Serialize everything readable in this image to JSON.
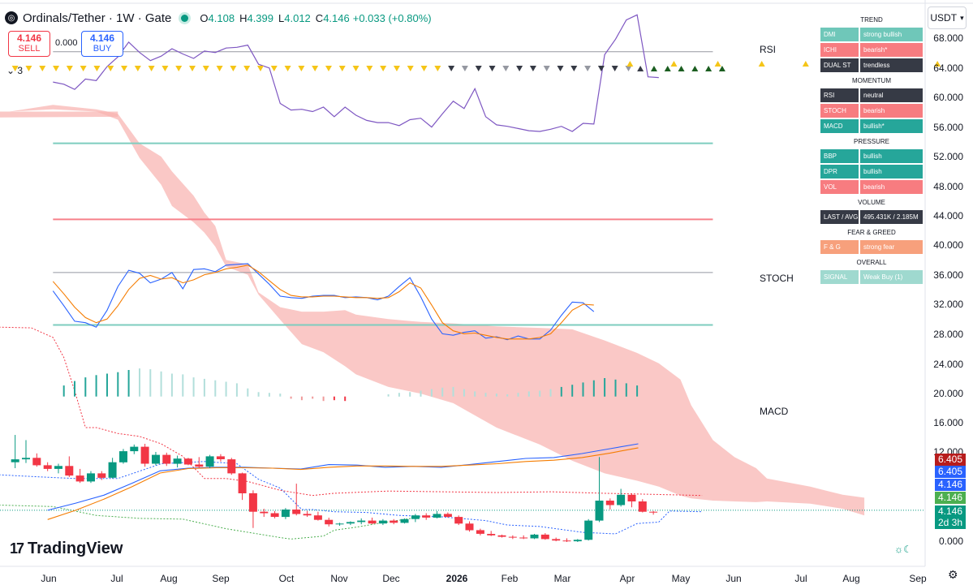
{
  "header": {
    "symbol_title": "Ordinals/Tether · 1W · Gate",
    "ohlc": [
      {
        "key": "O",
        "value": "4.108"
      },
      {
        "key": "H",
        "value": "4.399"
      },
      {
        "key": "L",
        "value": "4.012"
      },
      {
        "key": "C",
        "value": "4.146"
      }
    ],
    "change": "+0.033 (+0.80%)",
    "sell_price": "4.146",
    "sell_label": "SELL",
    "buy_price": "4.146",
    "buy_label": "BUY",
    "spread": "0.000",
    "collapse_count": "3",
    "currency": "USDT",
    "brand": "TradingView",
    "brand_mark": "17"
  },
  "colors": {
    "up": "#089981",
    "down": "#f23645",
    "cloud": "#f8b3b0",
    "rsi_line": "#7e57c2",
    "blue": "#2962ff",
    "orange": "#f57c00",
    "teal_level": "#7ecdbf",
    "red_level": "#f7808a"
  },
  "indicator_labels": {
    "rsi": "RSI",
    "stoch": "STOCH",
    "macd": "MACD"
  },
  "price_tags": [
    {
      "text": "6.405",
      "bg": "#b71c1c"
    },
    {
      "text": "6.405",
      "bg": "#2962ff"
    },
    {
      "text": "4.146",
      "bg": "#2962ff"
    },
    {
      "text": "4.146",
      "bg": "#4caf50"
    },
    {
      "text": "4.146",
      "bg": "#089981"
    },
    {
      "text": "2d 3h",
      "bg": "#089981"
    }
  ],
  "signal_panel": [
    {
      "type": "head",
      "text": "TREND"
    },
    {
      "type": "row",
      "key": "DMI",
      "value": "strong bullish",
      "kbg": "#6fc7b9",
      "vbg": "#6fc7b9"
    },
    {
      "type": "row",
      "key": "ICHI",
      "value": "bearish*",
      "kbg": "#f77c80",
      "vbg": "#f77c80"
    },
    {
      "type": "row",
      "key": "DUAL ST",
      "value": "trendless",
      "kbg": "#363a45",
      "vbg": "#363a45"
    },
    {
      "type": "head",
      "text": "MOMENTUM"
    },
    {
      "type": "row",
      "key": "RSI",
      "value": "neutral",
      "kbg": "#363a45",
      "vbg": "#363a45"
    },
    {
      "type": "row",
      "key": "STOCH",
      "value": "bearish",
      "kbg": "#f77c80",
      "vbg": "#f77c80"
    },
    {
      "type": "row",
      "key": "MACD",
      "value": "bullish*",
      "kbg": "#26a69a",
      "vbg": "#26a69a"
    },
    {
      "type": "head",
      "text": "PRESSURE"
    },
    {
      "type": "row",
      "key": "BBP",
      "value": "bullish",
      "kbg": "#26a69a",
      "vbg": "#26a69a"
    },
    {
      "type": "row",
      "key": "DPR",
      "value": "bullish",
      "kbg": "#26a69a",
      "vbg": "#26a69a"
    },
    {
      "type": "row",
      "key": "VOL",
      "value": "bearish",
      "kbg": "#f77c80",
      "vbg": "#f77c80"
    },
    {
      "type": "head",
      "text": "VOLUME"
    },
    {
      "type": "row",
      "key": "LAST / AVG",
      "value": "495.431K / 2.185M",
      "kbg": "#363a45",
      "vbg": "#363a45"
    },
    {
      "type": "head",
      "text": "FEAR & GREED"
    },
    {
      "type": "row",
      "key": "F & G",
      "value": "strong fear",
      "kbg": "#f7a07c",
      "vbg": "#f7a07c"
    },
    {
      "type": "head",
      "text": "OVERALL"
    },
    {
      "type": "row",
      "key": "SIGNAL",
      "value": "Weak Buy  (1)",
      "kbg": "#9fd9cf",
      "vbg": "#9fd9cf"
    }
  ],
  "chart_data": {
    "type": "candlestick",
    "yaxis": {
      "ticks": [
        "68.000",
        "64.000",
        "60.000",
        "56.000",
        "52.000",
        "48.000",
        "44.000",
        "40.000",
        "36.000",
        "32.000",
        "28.000",
        "24.000",
        "20.000",
        "16.000",
        "12.000",
        "0.000"
      ],
      "range": [
        0,
        70
      ]
    },
    "xaxis": {
      "ticks": [
        "Jun",
        "Jul",
        "Aug",
        "Sep",
        "Oct",
        "Nov",
        "Dec",
        "2026",
        "Feb",
        "Mar",
        "Apr",
        "May",
        "Jun",
        "Jul",
        "Aug",
        "Sep"
      ],
      "bold_tick": "2026"
    },
    "candles": [
      [
        9.8,
        13.5,
        9.0,
        10.2
      ],
      [
        10.2,
        12.8,
        9.7,
        10.4
      ],
      [
        10.4,
        11.0,
        9.2,
        9.4
      ],
      [
        9.4,
        9.8,
        8.6,
        8.9
      ],
      [
        8.9,
        9.6,
        8.3,
        9.3
      ],
      [
        9.3,
        10.6,
        7.8,
        8.0
      ],
      [
        8.0,
        8.9,
        7.0,
        7.2
      ],
      [
        7.2,
        8.6,
        7.0,
        8.3
      ],
      [
        8.3,
        8.6,
        7.4,
        7.7
      ],
      [
        7.7,
        10.4,
        7.6,
        9.8
      ],
      [
        9.8,
        11.6,
        9.6,
        11.3
      ],
      [
        11.3,
        12.2,
        10.9,
        11.9
      ],
      [
        11.9,
        12.3,
        9.2,
        9.6
      ],
      [
        9.6,
        11.2,
        9.4,
        10.8
      ],
      [
        10.8,
        11.1,
        9.3,
        9.6
      ],
      [
        9.6,
        10.7,
        9.1,
        10.3
      ],
      [
        10.3,
        10.4,
        9.4,
        9.5
      ],
      [
        9.5,
        10.5,
        9.0,
        9.2
      ],
      [
        9.2,
        10.8,
        9.0,
        10.6
      ],
      [
        10.6,
        10.9,
        9.9,
        10.2
      ],
      [
        10.2,
        10.4,
        8.1,
        8.3
      ],
      [
        8.3,
        8.4,
        4.7,
        5.6
      ],
      [
        5.6,
        6.0,
        0.9,
        3.1
      ],
      [
        3.1,
        3.5,
        2.4,
        2.9
      ],
      [
        2.9,
        3.2,
        2.2,
        2.4
      ],
      [
        2.4,
        3.6,
        2.1,
        3.4
      ],
      [
        3.4,
        6.9,
        2.6,
        2.8
      ],
      [
        2.8,
        3.2,
        2.4,
        2.6
      ],
      [
        2.6,
        3.1,
        1.9,
        2.0
      ],
      [
        2.0,
        2.3,
        1.1,
        1.4
      ],
      [
        1.4,
        1.6,
        1.2,
        1.5
      ],
      [
        1.5,
        1.8,
        1.3,
        1.7
      ],
      [
        1.7,
        2.2,
        1.4,
        1.9
      ],
      [
        1.9,
        2.3,
        1.4,
        1.5
      ],
      [
        1.5,
        2.1,
        1.3,
        1.9
      ],
      [
        1.9,
        2.1,
        1.4,
        1.6
      ],
      [
        1.6,
        2.2,
        1.5,
        2.1
      ],
      [
        2.1,
        2.8,
        1.7,
        2.6
      ],
      [
        2.6,
        2.9,
        2.0,
        2.3
      ],
      [
        2.3,
        3.2,
        2.2,
        2.8
      ],
      [
        2.8,
        3.0,
        2.3,
        2.4
      ],
      [
        2.4,
        2.6,
        1.3,
        1.5
      ],
      [
        1.5,
        1.8,
        0.4,
        0.6
      ],
      [
        0.6,
        0.8,
        -0.1,
        0.1
      ],
      [
        0.1,
        0.5,
        -0.2,
        -0.1
      ],
      [
        -0.1,
        0.0,
        -0.4,
        -0.3
      ],
      [
        -0.3,
        -0.1,
        -0.6,
        -0.4
      ],
      [
        -0.4,
        -0.1,
        -0.6,
        -0.5
      ],
      [
        -0.5,
        0.1,
        -0.6,
        0.0
      ],
      [
        0.0,
        0.2,
        -0.7,
        -0.6
      ],
      [
        -0.6,
        -0.4,
        -0.9,
        -0.8
      ],
      [
        -0.8,
        -0.5,
        -1.0,
        -0.9
      ],
      [
        -0.9,
        -0.6,
        -1.0,
        -0.7
      ],
      [
        -0.7,
        2.1,
        -0.8,
        1.9
      ],
      [
        1.9,
        10.5,
        1.7,
        4.6
      ],
      [
        4.6,
        4.9,
        3.4,
        4.0
      ],
      [
        4.0,
        6.2,
        3.8,
        5.4
      ],
      [
        5.4,
        5.6,
        3.7,
        4.5
      ],
      [
        4.5,
        4.8,
        3.0,
        3.1
      ],
      [
        3.1,
        3.2,
        2.7,
        3.0
      ]
    ],
    "cloud_upper": [
      [
        0,
        58.3
      ],
      [
        4,
        59.2
      ],
      [
        8,
        58.6
      ],
      [
        10,
        58.0
      ],
      [
        12,
        54.0
      ],
      [
        14,
        52.2
      ],
      [
        15,
        50.2
      ],
      [
        17,
        46.9
      ],
      [
        18,
        44.6
      ],
      [
        19,
        42.8
      ],
      [
        20,
        38.2
      ],
      [
        22,
        37.6
      ],
      [
        23,
        33.8
      ],
      [
        25,
        31.8
      ],
      [
        27,
        31.2
      ],
      [
        29,
        31.2
      ],
      [
        31,
        31.4
      ],
      [
        32,
        30.8
      ],
      [
        35,
        30.2
      ],
      [
        38,
        29.8
      ],
      [
        41,
        29.6
      ],
      [
        45,
        29.2
      ],
      [
        49,
        29.0
      ],
      [
        52,
        28.8
      ],
      [
        55,
        27.3
      ],
      [
        58,
        25.6
      ],
      [
        60,
        24.2
      ],
      [
        62,
        22.0
      ],
      [
        63,
        18.5
      ],
      [
        65,
        13.8
      ],
      [
        67,
        11.5
      ],
      [
        69,
        10.0
      ],
      [
        70,
        8.6
      ],
      [
        74,
        7.5
      ],
      [
        77,
        6.4
      ],
      [
        79,
        6.0
      ]
    ],
    "cloud_lower": [
      [
        0,
        58.3
      ],
      [
        4,
        58.6
      ],
      [
        8,
        58.3
      ],
      [
        10,
        57.2
      ],
      [
        12,
        52.0
      ],
      [
        14,
        48.4
      ],
      [
        15,
        45.5
      ],
      [
        17,
        43.3
      ],
      [
        18,
        41.9
      ],
      [
        19,
        40.0
      ],
      [
        20,
        37.3
      ],
      [
        22,
        36.2
      ],
      [
        23,
        33.5
      ],
      [
        25,
        30.1
      ],
      [
        27,
        26.8
      ],
      [
        29,
        25.7
      ],
      [
        31,
        23.8
      ],
      [
        32,
        22.7
      ],
      [
        35,
        21.0
      ],
      [
        38,
        20.1
      ],
      [
        41,
        18.8
      ],
      [
        45,
        15.5
      ],
      [
        49,
        13.2
      ],
      [
        52,
        11.0
      ],
      [
        55,
        9.3
      ],
      [
        58,
        8.3
      ],
      [
        60,
        7.5
      ],
      [
        62,
        6.3
      ],
      [
        63,
        5.9
      ],
      [
        65,
        5.6
      ],
      [
        67,
        5.5
      ],
      [
        69,
        5.4
      ],
      [
        70,
        5.5
      ],
      [
        74,
        5.2
      ],
      [
        77,
        4.5
      ],
      [
        79,
        3.6
      ]
    ],
    "series": [
      {
        "key": "rsi",
        "values": [
          62.3,
          62.0,
          61.3,
          62.7,
          62.5,
          64.4,
          65.7,
          67.7,
          66.3,
          65.2,
          65.8,
          66.8,
          66.1,
          65.5,
          66.5,
          66.3,
          66.9,
          67.0,
          67.3,
          64.7,
          64.2,
          59.4,
          58.5,
          58.6,
          58.3,
          58.9,
          57.6,
          58.9,
          57.8,
          57.1,
          56.8,
          56.8,
          56.4,
          57.2,
          57.4,
          56.2,
          58.0,
          59.7,
          58.7,
          61.4,
          57.6,
          56.5,
          56.3,
          56.0,
          55.7,
          55.6,
          55.9,
          56.3,
          55.6,
          56.7,
          56.6,
          66.0,
          68.1,
          70.7,
          71.4,
          63.0,
          62.9
        ]
      },
      {
        "key": "stoch_k",
        "values": [
          34.0,
          32.0,
          29.9,
          29.7,
          29.1,
          31.4,
          34.6,
          36.8,
          36.4,
          35.1,
          35.6,
          36.5,
          34.3,
          36.9,
          37.0,
          36.6,
          37.5,
          37.6,
          37.7,
          36.3,
          34.9,
          33.3,
          33.1,
          33.0,
          33.3,
          33.4,
          33.4,
          33.1,
          33.2,
          33.1,
          32.8,
          33.3,
          34.6,
          35.8,
          33.2,
          30.2,
          28.2,
          28.0,
          28.4,
          28.6,
          27.6,
          27.8,
          27.4,
          27.9,
          27.5,
          27.5,
          28.7,
          30.7,
          32.5,
          32.4,
          31.2
        ]
      },
      {
        "key": "stoch_d",
        "values": [
          35.3,
          33.6,
          31.8,
          30.4,
          29.7,
          30.2,
          32.0,
          34.2,
          35.7,
          36.1,
          35.6,
          35.8,
          35.1,
          35.5,
          36.2,
          36.5,
          37.0,
          37.2,
          37.5,
          36.6,
          35.4,
          34.2,
          33.4,
          33.2,
          33.2,
          33.3,
          33.3,
          33.2,
          33.1,
          33.1,
          33.0,
          33.1,
          33.9,
          35.1,
          34.4,
          32.1,
          29.7,
          28.6,
          28.2,
          28.3,
          28.0,
          27.7,
          27.5,
          27.5,
          27.5,
          27.7,
          28.2,
          29.7,
          31.4,
          32.2,
          32.1
        ]
      },
      {
        "key": "macd_line",
        "values": [
          4.5,
          6.1,
          7.9,
          10.6,
          13.4,
          14.0,
          14.2,
          14.2,
          14.0,
          13.8,
          14.8,
          14.7,
          14.2,
          14.4,
          14.2,
          14.8,
          15.5,
          16.2,
          16.4,
          17.3,
          18.4,
          19.5
        ]
      },
      {
        "key": "macd_signal",
        "values": [
          2.4,
          4.5,
          7.0,
          9.8,
          12.9,
          13.9,
          14.1,
          14.1,
          14.0,
          13.7,
          14.2,
          14.5,
          14.5,
          14.4,
          14.4,
          14.7,
          15.0,
          15.5,
          15.8,
          16.4,
          17.4,
          18.6
        ]
      }
    ],
    "levels": {
      "rsi_upper": 66.4,
      "rsi_lower": 54.0,
      "stoch_upper": 36.5,
      "stoch_lower": 29.4,
      "red_level": 43.7
    }
  }
}
